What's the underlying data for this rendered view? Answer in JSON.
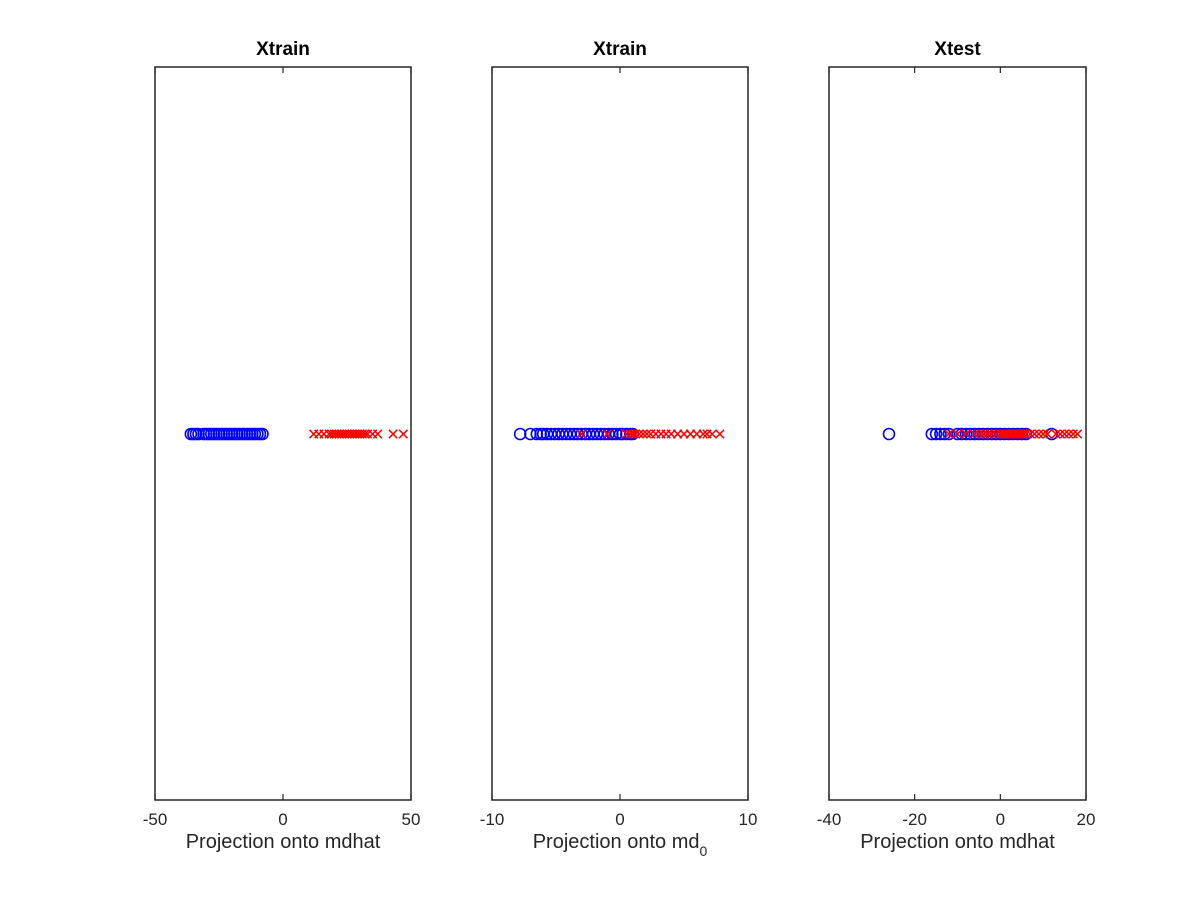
{
  "chart_data": [
    {
      "type": "scatter",
      "title": "Xtrain",
      "xlabel": "Projection onto mdhat",
      "xlabel_sub": "",
      "xlim": [
        -50,
        50
      ],
      "xticks": [
        -50,
        0,
        50
      ],
      "series": [
        {
          "marker": "circle",
          "color": "#0000ff",
          "x": [
            -36,
            -35,
            -34,
            -33,
            -31,
            -30,
            -29,
            -28,
            -27,
            -26,
            -25,
            -24,
            -23,
            -22,
            -21,
            -20,
            -19,
            -18,
            -17,
            -16,
            -15,
            -14,
            -13,
            -12,
            -11,
            -10,
            -9,
            -8
          ]
        },
        {
          "marker": "x",
          "color": "#ff0000",
          "x": [
            12,
            14,
            16,
            18,
            19,
            20,
            21,
            22,
            23,
            24,
            25,
            26,
            27,
            28,
            29,
            30,
            31,
            32,
            33,
            35,
            37,
            43,
            47
          ]
        }
      ]
    },
    {
      "type": "scatter",
      "title": "Xtrain",
      "xlabel": "Projection onto md",
      "xlabel_sub": "0",
      "xlim": [
        -10,
        10
      ],
      "xticks": [
        -10,
        0,
        10
      ],
      "series": [
        {
          "marker": "circle",
          "color": "#0000ff",
          "x": [
            -7.8,
            -7,
            -6.5,
            -6.2,
            -6,
            -5.7,
            -5.4,
            -5.1,
            -4.8,
            -4.5,
            -4.2,
            -3.9,
            -3.6,
            -3.3,
            -3,
            -2.7,
            -2.4,
            -2.1,
            -1.8,
            -1.5,
            -1.2,
            -0.9,
            -0.6,
            -0.3,
            0,
            0.2,
            0.5,
            0.8,
            1
          ]
        },
        {
          "marker": "x",
          "color": "#ff0000",
          "x": [
            -3,
            -1,
            0.5,
            0.8,
            1,
            1.2,
            1.5,
            1.8,
            2.1,
            2.4,
            2.8,
            3.2,
            3.6,
            4,
            4.5,
            5,
            5.5,
            6,
            6.5,
            6.8,
            7.2,
            7.8
          ]
        }
      ]
    },
    {
      "type": "scatter",
      "title": "Xtest",
      "xlabel": "Projection onto mdhat",
      "xlabel_sub": "",
      "xlim": [
        -40,
        20
      ],
      "xticks": [
        -40,
        -20,
        0,
        20
      ],
      "series": [
        {
          "marker": "circle",
          "color": "#0000ff",
          "x": [
            -26,
            -16,
            -15,
            -14,
            -13,
            -12,
            -10,
            -9,
            -8,
            -7,
            -6,
            -5,
            -4,
            -3,
            -2,
            -1,
            0,
            1,
            2,
            3,
            4,
            5,
            6,
            12
          ]
        },
        {
          "marker": "x",
          "color": "#ff0000",
          "x": [
            -12,
            -10,
            -8,
            -6,
            -5,
            -4,
            -3,
            -2,
            -1,
            0,
            0.5,
            1,
            1.5,
            2,
            2.5,
            3,
            3.5,
            4,
            4.5,
            5,
            5.5,
            6,
            7,
            8,
            9,
            10,
            11,
            13,
            14,
            15,
            16,
            17,
            18
          ]
        }
      ]
    }
  ]
}
